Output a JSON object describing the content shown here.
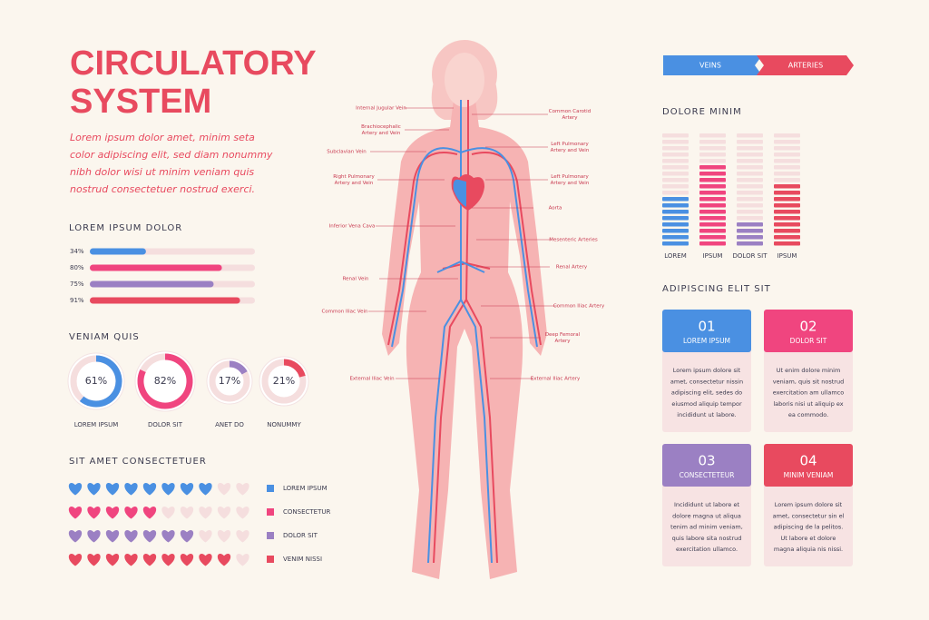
{
  "title_lines": [
    "CIRCULATORY",
    "SYSTEM"
  ],
  "intro_lines": [
    "Lorem ipsum dolor amet, minim seta",
    "color adipiscing elit, sed diam nonummy",
    "nibh dolor wisi ut minim veniam quis",
    "nostrud consectetuer nostrud exerci."
  ],
  "progress": {
    "title": "LOREM IPSUM DOLOR",
    "values": [
      34,
      80,
      75,
      91
    ],
    "value_labels": [
      "34%",
      "80%",
      "75%",
      "91%"
    ],
    "colors": [
      "#4a90e2",
      "#f0457f",
      "#9b80c3",
      "#e84a5f"
    ],
    "max": 100
  },
  "donuts": {
    "title": "VENIAM QUIS",
    "categories": [
      "LOREM IPSUM",
      "DOLOR SIT",
      "ANET DO",
      "NONUMMY"
    ],
    "values": [
      61,
      82,
      17,
      21
    ],
    "value_labels": [
      "61%",
      "82%",
      "17%",
      "21%"
    ],
    "colors": [
      "#4a90e2",
      "#f0457f",
      "#9b80c3",
      "#e84a5f"
    ],
    "max": 100
  },
  "hearts": {
    "title": "SIT AMET CONSECTETUER",
    "total": 10,
    "series": [
      {
        "name": "LOREM IPSUM",
        "color": "#4a90e2",
        "value": 8
      },
      {
        "name": "CONSECTETUR",
        "color": "#f0457f",
        "value": 5
      },
      {
        "name": "DOLOR SIT",
        "color": "#9b80c3",
        "value": 7
      },
      {
        "name": "VENIM NISSI",
        "color": "#e84a5f",
        "value": 9
      }
    ]
  },
  "legend": {
    "veins": "VEINS",
    "arteries": "ARTERIES"
  },
  "stripes": {
    "title": "DOLORE MINIM",
    "total": 18,
    "categories": [
      "LOREM",
      "IPSUM",
      "DOLOR SIT",
      "IPSUM"
    ],
    "values": [
      8,
      13,
      4,
      10
    ],
    "colors": [
      "#4a90e2",
      "#f0457f",
      "#9b80c3",
      "#e84a5f"
    ]
  },
  "body_labels": {
    "left": [
      [
        "Internal Jugular Vein"
      ],
      [
        "Brachiocephalic",
        "Artery and Vein"
      ],
      [
        "Subclavian Vein"
      ],
      [
        "Right Pulmonary",
        "Artery and Vein"
      ],
      [
        "Inferior Vena Cava"
      ],
      [
        "Renal Vein"
      ],
      [
        "Common Iliac Vein"
      ],
      [
        "External Iliac Vein"
      ]
    ],
    "right": [
      [
        "Common Carotid",
        "Artery"
      ],
      [
        "Left Pulmonary",
        "Artery and Vein"
      ],
      [
        "Left Pulmonary",
        "Artery and Vein"
      ],
      [
        "Aorta"
      ],
      [
        "Mesenteric Arteries"
      ],
      [
        "Renal Artery"
      ],
      [
        "Common Iliac Artery"
      ],
      [
        "Deep Femoral",
        "Artery"
      ],
      [
        "External Iliac Artery"
      ]
    ]
  },
  "cards": {
    "title": "ADIPISCING ELIT SIT",
    "items": [
      {
        "number": "01",
        "title": "LOREM IPSUM",
        "color": "#4a90e2",
        "lines": [
          "Lorem ipsum dolore sit",
          "amet, consectetur nissin",
          "adipiscing elit, sedes do",
          "eiusmod aliquip tempor",
          "incididunt ut labore."
        ]
      },
      {
        "number": "02",
        "title": "DOLOR SIT",
        "color": "#f0457f",
        "lines": [
          "Ut enim dolore minim",
          "veniam, quis sit nostrud",
          "exercitation am ullamco",
          "laboris nisi ut aliquip ex",
          "ea commodo."
        ]
      },
      {
        "number": "03",
        "title": "CONSECTETEUR",
        "color": "#9b80c3",
        "lines": [
          "Incididunt ut labore et",
          "dolore magna ut aliqua",
          "tenim ad minim veniam,",
          "quis labore sita nostrud",
          "exercitation ullamco."
        ]
      },
      {
        "number": "04",
        "title": "MINIM VENIAM",
        "color": "#e84a5f",
        "lines": [
          "Lorem ipsum dolore sit",
          "amet, consectetur sin el",
          "adipiscing de la pelitos.",
          "Ut labore et dolore",
          "magna aliquia nis nissi."
        ]
      }
    ]
  }
}
